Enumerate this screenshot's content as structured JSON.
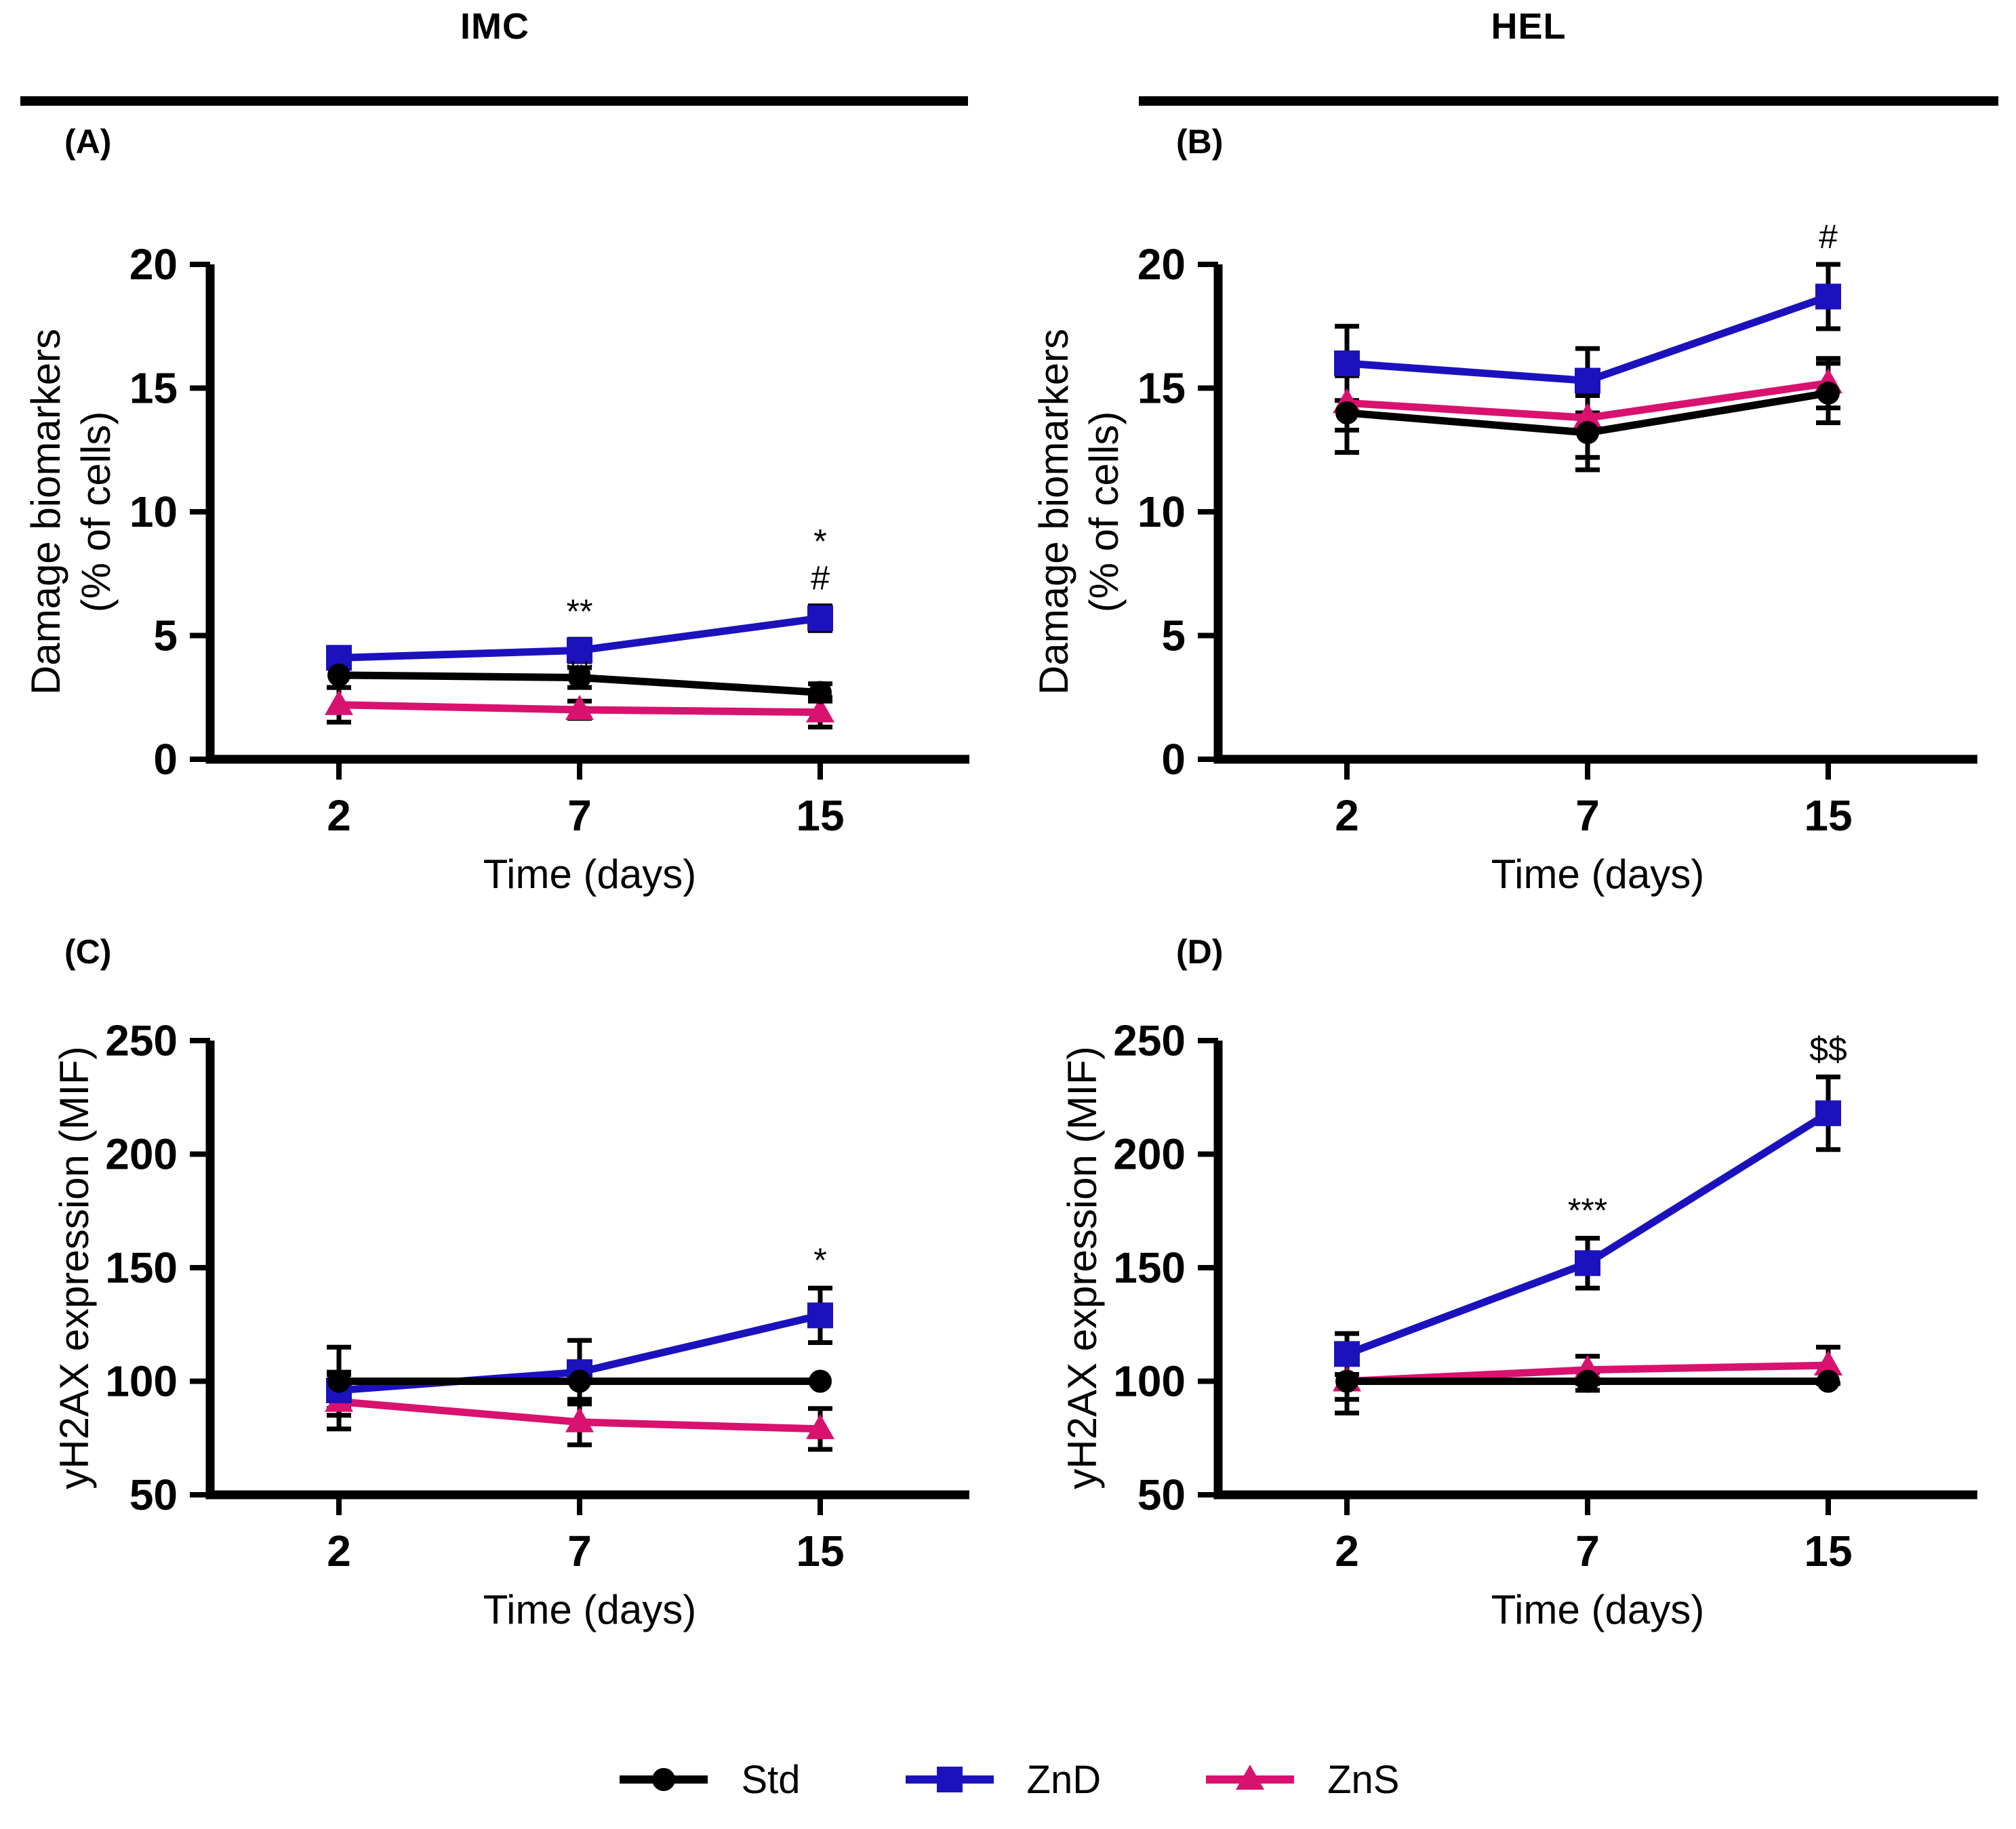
{
  "figure": {
    "column_headers": [
      {
        "label": "IMC"
      },
      {
        "label": "HEL"
      }
    ],
    "panel_labels": [
      "(A)",
      "(B)",
      "(C)",
      "(D)"
    ],
    "legend": [
      {
        "name": "Std",
        "color": "#000000",
        "marker": "circle"
      },
      {
        "name": "ZnD",
        "color": "#1B12BD",
        "marker": "square"
      },
      {
        "name": "ZnS",
        "color": "#D9116F",
        "marker": "triangle"
      }
    ],
    "colors": {
      "std_black": "#000000",
      "znd_blue": "#1B12BD",
      "zns_pink": "#D9116F",
      "error_bar": "#000000"
    }
  },
  "chart_data": [
    {
      "id": "A",
      "type": "line",
      "column": "IMC",
      "x": [
        2,
        7,
        15
      ],
      "xlabel": "Time (days)",
      "ylabel_lines": [
        "Damage biomarkers",
        "(% of cells)"
      ],
      "ylim": [
        0,
        20
      ],
      "yticks": [
        0,
        5,
        10,
        15,
        20
      ],
      "grid": false,
      "series": [
        {
          "name": "Std",
          "color": "#000000",
          "marker": "circle",
          "values": [
            3.4,
            3.3,
            2.7
          ],
          "errors": [
            0.5,
            0.4,
            0.35
          ]
        },
        {
          "name": "ZnD",
          "color": "#1B12BD",
          "marker": "square",
          "values": [
            4.1,
            4.4,
            5.7
          ],
          "errors": [
            0.4,
            0.45,
            0.5
          ]
        },
        {
          "name": "ZnS",
          "color": "#D9116F",
          "marker": "triangle",
          "values": [
            2.2,
            2.0,
            1.9
          ],
          "errors": [
            0.7,
            0.35,
            0.6
          ]
        }
      ],
      "annotations": [
        {
          "series": "ZnD",
          "xi": 1,
          "symbols": [
            "**"
          ]
        },
        {
          "series": "ZnS",
          "xi": 1,
          "symbols": [
            "**"
          ]
        },
        {
          "series": "ZnD",
          "xi": 2,
          "symbols": [
            "*",
            "#"
          ]
        }
      ]
    },
    {
      "id": "B",
      "type": "line",
      "column": "HEL",
      "x": [
        2,
        7,
        15
      ],
      "xlabel": "Time (days)",
      "ylabel_lines": [
        "Damage biomarkers",
        "(% of cells)"
      ],
      "ylim": [
        0,
        20
      ],
      "yticks": [
        0,
        5,
        10,
        15,
        20
      ],
      "grid": false,
      "series": [
        {
          "name": "Std",
          "color": "#000000",
          "marker": "circle",
          "values": [
            14.0,
            13.2,
            14.8
          ],
          "errors": [
            1.6,
            1.5,
            1.2
          ]
        },
        {
          "name": "ZnD",
          "color": "#1B12BD",
          "marker": "square",
          "values": [
            16.0,
            15.3,
            18.7
          ],
          "errors": [
            1.5,
            1.3,
            1.3
          ]
        },
        {
          "name": "ZnS",
          "color": "#D9116F",
          "marker": "triangle",
          "values": [
            14.4,
            13.8,
            15.2
          ],
          "errors": [
            1.1,
            1.6,
            1.0
          ]
        }
      ],
      "annotations": [
        {
          "series": "ZnD",
          "xi": 2,
          "symbols": [
            "#"
          ]
        }
      ]
    },
    {
      "id": "C",
      "type": "line",
      "column": "IMC",
      "x": [
        2,
        7,
        15
      ],
      "xlabel": "Time (days)",
      "ylabel_lines": [
        "yH2AX expression (MIF)"
      ],
      "ylim": [
        50,
        250
      ],
      "yticks": [
        50,
        100,
        150,
        200,
        250
      ],
      "grid": false,
      "series": [
        {
          "name": "Std",
          "color": "#000000",
          "marker": "circle",
          "values": [
            100,
            100,
            100
          ],
          "errors": [
            15,
            8,
            0
          ]
        },
        {
          "name": "ZnD",
          "color": "#1B12BD",
          "marker": "square",
          "values": [
            96,
            104,
            129
          ],
          "errors": [
            8,
            14,
            12
          ]
        },
        {
          "name": "ZnS",
          "color": "#D9116F",
          "marker": "triangle",
          "values": [
            91,
            82,
            79
          ],
          "errors": [
            12,
            10,
            9
          ]
        }
      ],
      "annotations": [
        {
          "series": "ZnD",
          "xi": 2,
          "symbols": [
            "*"
          ]
        }
      ]
    },
    {
      "id": "D",
      "type": "line",
      "column": "HEL",
      "x": [
        2,
        7,
        15
      ],
      "xlabel": "Time (days)",
      "ylabel_lines": [
        "yH2AX expression (MIF)"
      ],
      "ylim": [
        50,
        250
      ],
      "yticks": [
        50,
        100,
        150,
        200,
        250
      ],
      "grid": false,
      "series": [
        {
          "name": "Std",
          "color": "#000000",
          "marker": "circle",
          "values": [
            100,
            100,
            100
          ],
          "errors": [
            14,
            4,
            0
          ]
        },
        {
          "name": "ZnD",
          "color": "#1B12BD",
          "marker": "square",
          "values": [
            112,
            152,
            218
          ],
          "errors": [
            9,
            11,
            16
          ]
        },
        {
          "name": "ZnS",
          "color": "#D9116F",
          "marker": "triangle",
          "values": [
            100,
            105,
            107
          ],
          "errors": [
            8,
            6,
            8
          ]
        }
      ],
      "annotations": [
        {
          "series": "ZnD",
          "xi": 1,
          "symbols": [
            "***"
          ]
        },
        {
          "series": "ZnD",
          "xi": 2,
          "symbols": [
            "$$"
          ]
        }
      ]
    }
  ]
}
